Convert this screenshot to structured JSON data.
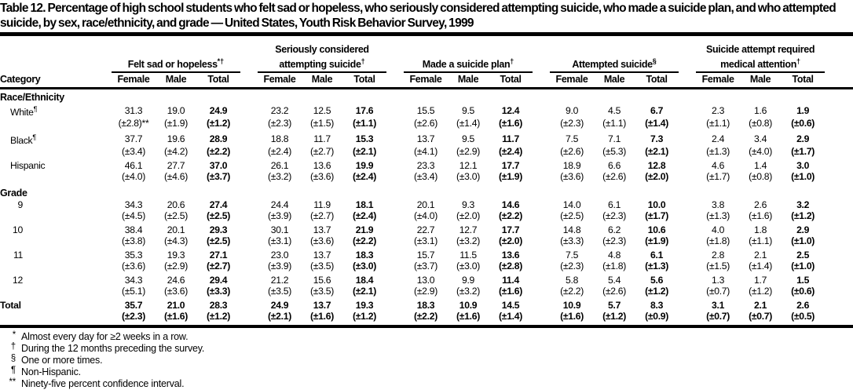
{
  "title": "Table 12. Percentage of high school students who felt sad or hopeless, who seriously considered attempting suicide, who made a suicide plan, and who attempted suicide, by sex, race/ethnicity, and grade — United States, Youth Risk Behavior Survey, 1999",
  "colors": {
    "text": "#000000",
    "background": "#ffffff",
    "rules": "#000000"
  },
  "table": {
    "category_header": "Category",
    "sub_headers": [
      "Female",
      "Male",
      "Total"
    ],
    "groups": [
      {
        "label": "Felt sad or hopeless",
        "sup": "*†"
      },
      {
        "label": "Seriously considered attempting suicide",
        "sup": "†"
      },
      {
        "label": "Made a suicide plan",
        "sup": "†"
      },
      {
        "label": "Attempted suicide",
        "sup": "§"
      },
      {
        "label": "Suicide attempt required medical attention",
        "sup": "†"
      }
    ],
    "sections": [
      {
        "header": "Race/Ethnicity",
        "rows": [
          {
            "label": "White",
            "sup": "¶",
            "values": [
              [
                "31.3",
                "19.0",
                "24.9"
              ],
              [
                "23.2",
                "12.5",
                "17.6"
              ],
              [
                "15.5",
                "9.5",
                "12.4"
              ],
              [
                "9.0",
                "4.5",
                "6.7"
              ],
              [
                "2.3",
                "1.6",
                "1.9"
              ]
            ],
            "ci": [
              [
                "(±2.8)**",
                "(±1.9)",
                "(±1.2)"
              ],
              [
                "(±2.3)",
                "(±1.5)",
                "(±1.1)"
              ],
              [
                "(±2.6)",
                "(±1.4)",
                "(±1.6)"
              ],
              [
                "(±2.3)",
                "(±1.1)",
                "(±1.4)"
              ],
              [
                "(±1.1)",
                "(±0.8)",
                "(±0.6)"
              ]
            ]
          },
          {
            "label": "Black",
            "sup": "¶",
            "values": [
              [
                "37.7",
                "19.6",
                "28.9"
              ],
              [
                "18.8",
                "11.7",
                "15.3"
              ],
              [
                "13.7",
                "9.5",
                "11.7"
              ],
              [
                "7.5",
                "7.1",
                "7.3"
              ],
              [
                "2.4",
                "3.4",
                "2.9"
              ]
            ],
            "ci": [
              [
                "(±3.4)",
                "(±4.2)",
                "(±2.2)"
              ],
              [
                "(±2.4)",
                "(±2.7)",
                "(±2.1)"
              ],
              [
                "(±4.1)",
                "(±2.9)",
                "(±2.4)"
              ],
              [
                "(±2.6)",
                "(±5.3)",
                "(±2.1)"
              ],
              [
                "(±1.3)",
                "(±4.0)",
                "(±1.7)"
              ]
            ]
          },
          {
            "label": "Hispanic",
            "sup": "",
            "values": [
              [
                "46.1",
                "27.7",
                "37.0"
              ],
              [
                "26.1",
                "13.6",
                "19.9"
              ],
              [
                "23.3",
                "12.1",
                "17.7"
              ],
              [
                "18.9",
                "6.6",
                "12.8"
              ],
              [
                "4.6",
                "1.4",
                "3.0"
              ]
            ],
            "ci": [
              [
                "(±4.0)",
                "(±4.6)",
                "(±3.7)"
              ],
              [
                "(±3.2)",
                "(±3.6)",
                "(±2.4)"
              ],
              [
                "(±3.4)",
                "(±3.0)",
                "(±1.9)"
              ],
              [
                "(±3.6)",
                "(±2.6)",
                "(±2.0)"
              ],
              [
                "(±1.7)",
                "(±0.8)",
                "(±1.0)"
              ]
            ]
          }
        ]
      },
      {
        "header": "Grade",
        "rows": [
          {
            "label": "9",
            "sup": "",
            "values": [
              [
                "34.3",
                "20.6",
                "27.4"
              ],
              [
                "24.4",
                "11.9",
                "18.1"
              ],
              [
                "20.1",
                "9.3",
                "14.6"
              ],
              [
                "14.0",
                "6.1",
                "10.0"
              ],
              [
                "3.8",
                "2.6",
                "3.2"
              ]
            ],
            "ci": [
              [
                "(±4.5)",
                "(±2.5)",
                "(±2.5)"
              ],
              [
                "(±3.9)",
                "(±2.7)",
                "(±2.4)"
              ],
              [
                "(±4.0)",
                "(±2.0)",
                "(±2.2)"
              ],
              [
                "(±2.5)",
                "(±2.3)",
                "(±1.7)"
              ],
              [
                "(±1.3)",
                "(±1.6)",
                "(±1.2)"
              ]
            ]
          },
          {
            "label": "10",
            "sup": "",
            "values": [
              [
                "38.4",
                "20.1",
                "29.3"
              ],
              [
                "30.1",
                "13.7",
                "21.9"
              ],
              [
                "22.7",
                "12.7",
                "17.7"
              ],
              [
                "14.8",
                "6.2",
                "10.6"
              ],
              [
                "4.0",
                "1.8",
                "2.9"
              ]
            ],
            "ci": [
              [
                "(±3.8)",
                "(±4.3)",
                "(±2.5)"
              ],
              [
                "(±3.1)",
                "(±3.6)",
                "(±2.2)"
              ],
              [
                "(±3.1)",
                "(±3.2)",
                "(±2.0)"
              ],
              [
                "(±3.3)",
                "(±2.3)",
                "(±1.9)"
              ],
              [
                "(±1.8)",
                "(±1.1)",
                "(±1.0)"
              ]
            ]
          },
          {
            "label": "11",
            "sup": "",
            "values": [
              [
                "35.3",
                "19.3",
                "27.1"
              ],
              [
                "23.0",
                "13.7",
                "18.3"
              ],
              [
                "15.7",
                "11.5",
                "13.6"
              ],
              [
                "7.5",
                "4.8",
                "6.1"
              ],
              [
                "2.8",
                "2.1",
                "2.5"
              ]
            ],
            "ci": [
              [
                "(±3.6)",
                "(±2.9)",
                "(±2.7)"
              ],
              [
                "(±3.9)",
                "(±3.5)",
                "(±3.0)"
              ],
              [
                "(±3.7)",
                "(±3.0)",
                "(±2.8)"
              ],
              [
                "(±2.3)",
                "(±1.8)",
                "(±1.3)"
              ],
              [
                "(±1.5)",
                "(±1.4)",
                "(±1.0)"
              ]
            ]
          },
          {
            "label": "12",
            "sup": "",
            "values": [
              [
                "34.3",
                "24.6",
                "29.4"
              ],
              [
                "21.2",
                "15.6",
                "18.4"
              ],
              [
                "13.0",
                "9.9",
                "11.4"
              ],
              [
                "5.8",
                "5.4",
                "5.6"
              ],
              [
                "1.3",
                "1.7",
                "1.5"
              ]
            ],
            "ci": [
              [
                "(±5.1)",
                "(±3.6)",
                "(±3.3)"
              ],
              [
                "(±3.5)",
                "(±3.5)",
                "(±2.1)"
              ],
              [
                "(±2.9)",
                "(±3.2)",
                "(±1.6)"
              ],
              [
                "(±2.2)",
                "(±2.6)",
                "(±1.2)"
              ],
              [
                "(±0.7)",
                "(±1.2)",
                "(±0.6)"
              ]
            ]
          }
        ]
      }
    ],
    "total_row": {
      "label": "Total",
      "sup": "",
      "values": [
        [
          "35.7",
          "21.0",
          "28.3"
        ],
        [
          "24.9",
          "13.7",
          "19.3"
        ],
        [
          "18.3",
          "10.9",
          "14.5"
        ],
        [
          "10.9",
          "5.7",
          "8.3"
        ],
        [
          "3.1",
          "2.1",
          "2.6"
        ]
      ],
      "ci": [
        [
          "(±2.3)",
          "(±1.6)",
          "(±1.2)"
        ],
        [
          "(±2.1)",
          "(±1.6)",
          "(±1.2)"
        ],
        [
          "(±2.2)",
          "(±1.6)",
          "(±1.4)"
        ],
        [
          "(±1.6)",
          "(±1.2)",
          "(±0.9)"
        ],
        [
          "(±0.7)",
          "(±0.7)",
          "(±0.5)"
        ]
      ]
    }
  },
  "footnotes": [
    {
      "marker": "*",
      "text": "Almost every day for ≥2 weeks in a row."
    },
    {
      "marker": "†",
      "text": "During the 12 months preceding the survey."
    },
    {
      "marker": "§",
      "text": "One or more times."
    },
    {
      "marker": "¶",
      "text": "Non-Hispanic."
    },
    {
      "marker": "**",
      "text": "Ninety-five percent confidence interval."
    }
  ]
}
